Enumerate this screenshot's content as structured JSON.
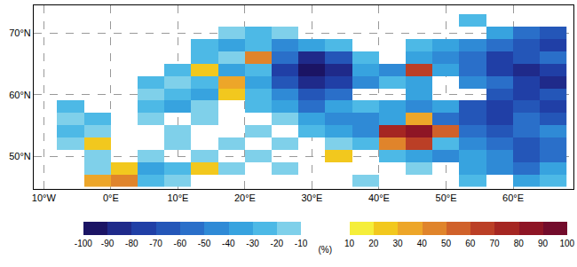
{
  "chart_data": {
    "type": "heatmap",
    "x": [
      -10,
      -6,
      -2,
      2,
      6,
      10,
      14,
      18,
      22,
      26,
      30,
      34,
      38,
      42,
      46,
      50,
      54,
      58,
      62,
      66
    ],
    "y": [
      46,
      48,
      50,
      52,
      54,
      56,
      58,
      60,
      62,
      64,
      66,
      68,
      70,
      72,
      74
    ],
    "z": [
      [
        null,
        null,
        30,
        40,
        -30,
        -20,
        null,
        null,
        null,
        null,
        null,
        null,
        -20,
        null,
        null,
        null,
        -30,
        null,
        -40,
        -30
      ],
      [
        null,
        null,
        -20,
        20,
        -40,
        -30,
        20,
        -20,
        null,
        -20,
        null,
        null,
        null,
        null,
        -20,
        null,
        -40,
        -50,
        -60,
        -40
      ],
      [
        null,
        null,
        -20,
        null,
        -20,
        null,
        -20,
        null,
        -20,
        null,
        null,
        20,
        null,
        -30,
        -40,
        -50,
        -40,
        -50,
        -70,
        -60
      ],
      [
        null,
        -20,
        20,
        null,
        null,
        -20,
        null,
        -20,
        null,
        -20,
        null,
        -20,
        -30,
        40,
        60,
        -30,
        -50,
        -60,
        -70,
        -60
      ],
      [
        null,
        -30,
        -20,
        null,
        null,
        -20,
        null,
        null,
        -20,
        null,
        -30,
        -40,
        -50,
        70,
        80,
        50,
        -60,
        -70,
        -60,
        -50
      ],
      [
        null,
        -20,
        -30,
        null,
        -20,
        null,
        -20,
        null,
        null,
        -20,
        -40,
        -50,
        -50,
        -40,
        30,
        -60,
        -70,
        -80,
        -60,
        -70
      ],
      [
        null,
        -30,
        null,
        null,
        -30,
        -40,
        -20,
        null,
        -30,
        -40,
        -60,
        -40,
        -30,
        -40,
        -50,
        -40,
        -70,
        -80,
        -70,
        -80
      ],
      [
        null,
        null,
        null,
        null,
        -20,
        -30,
        -40,
        20,
        -30,
        -50,
        -70,
        -60,
        null,
        null,
        -40,
        null,
        null,
        -70,
        -80,
        -70
      ],
      [
        null,
        null,
        null,
        null,
        -30,
        -20,
        -30,
        30,
        -40,
        -70,
        -90,
        -80,
        -50,
        -30,
        -40,
        null,
        -50,
        -60,
        -80,
        -90
      ],
      [
        null,
        null,
        null,
        null,
        null,
        -30,
        20,
        -40,
        -30,
        -80,
        -100,
        -90,
        -40,
        -50,
        60,
        -40,
        -60,
        -80,
        -90,
        -80
      ],
      [
        null,
        null,
        null,
        null,
        null,
        null,
        -30,
        -20,
        40,
        -60,
        -90,
        -70,
        -30,
        null,
        -40,
        -50,
        -60,
        -80,
        -70,
        -60
      ],
      [
        null,
        null,
        null,
        null,
        null,
        null,
        -30,
        -40,
        -30,
        -50,
        -40,
        -30,
        null,
        null,
        -30,
        -40,
        -50,
        -60,
        -70,
        -80
      ],
      [
        null,
        null,
        null,
        null,
        null,
        null,
        null,
        -20,
        -30,
        -20,
        null,
        null,
        null,
        null,
        null,
        null,
        null,
        -40,
        -60,
        -70
      ],
      [
        null,
        null,
        null,
        null,
        null,
        null,
        null,
        null,
        null,
        null,
        null,
        null,
        null,
        null,
        null,
        null,
        -30,
        null,
        null,
        null
      ],
      [
        null,
        null,
        null,
        null,
        null,
        null,
        null,
        null,
        null,
        null,
        null,
        null,
        null,
        null,
        null,
        null,
        null,
        null,
        null,
        null
      ]
    ],
    "xlim": [
      -11.5,
      69
    ],
    "ylim": [
      44.7,
      74.5
    ],
    "xticks": [
      {
        "value": -10,
        "label": "10°W"
      },
      {
        "value": 0,
        "label": "0°E"
      },
      {
        "value": 10,
        "label": "10°E"
      },
      {
        "value": 20,
        "label": "20°E"
      },
      {
        "value": 30,
        "label": "30°E"
      },
      {
        "value": 40,
        "label": "40°E"
      },
      {
        "value": 50,
        "label": "50°E"
      },
      {
        "value": 60,
        "label": "60°E"
      }
    ],
    "yticks": [
      {
        "value": 50,
        "label": "50°N"
      },
      {
        "value": 60,
        "label": "60°N"
      },
      {
        "value": 70,
        "label": "70°N"
      }
    ],
    "grid": true,
    "colorbar": {
      "title": "(%)",
      "zlim": [
        -100,
        100
      ],
      "ticks": [
        -100,
        -90,
        -80,
        -70,
        -60,
        -50,
        -40,
        -30,
        -20,
        -10,
        10,
        20,
        30,
        40,
        50,
        60,
        70,
        80,
        90,
        100
      ],
      "colors": [
        "#1b1464",
        "#1f2a8a",
        "#203fa6",
        "#2456b8",
        "#2a6fc9",
        "#2f8ad6",
        "#37a3df",
        "#4db9e6",
        "#7fd0ea",
        "#ffffff",
        "#f5ee3a",
        "#f2c81e",
        "#eda629",
        "#e0842b",
        "#d0612a",
        "#bb3f26",
        "#a52622",
        "#8e1525",
        "#730c2c"
      ]
    }
  }
}
